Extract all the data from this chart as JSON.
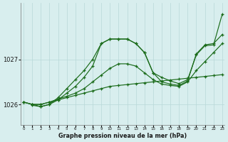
{
  "title": "Graphe pression niveau de la mer (hPa)",
  "background_color": "#d8eeee",
  "grid_color": "#b8d8d8",
  "line_color": "#1a6b1a",
  "xlim": [
    -0.3,
    23.3
  ],
  "ylim": [
    1025.55,
    1028.25
  ],
  "yticks": [
    1026,
    1027
  ],
  "xticks": [
    0,
    1,
    2,
    3,
    4,
    5,
    6,
    7,
    8,
    9,
    10,
    11,
    12,
    13,
    14,
    15,
    16,
    17,
    18,
    19,
    20,
    21,
    22,
    23
  ],
  "series": [
    {
      "x": [
        0,
        1,
        2,
        3,
        4,
        5,
        6,
        7,
        8,
        9,
        10,
        11,
        12,
        13,
        14,
        15,
        16,
        17,
        18,
        19,
        20,
        21,
        22,
        23
      ],
      "y": [
        1026.05,
        1026.0,
        1026.0,
        1026.05,
        1026.1,
        1026.15,
        1026.2,
        1026.25,
        1026.3,
        1026.35,
        1026.4,
        1026.42,
        1026.44,
        1026.46,
        1026.48,
        1026.5,
        1026.52,
        1026.54,
        1026.56,
        1026.58,
        1026.6,
        1026.62,
        1026.64,
        1026.66
      ]
    },
    {
      "x": [
        0,
        1,
        2,
        3,
        4,
        5,
        6,
        7,
        8,
        9,
        10,
        11,
        12,
        13,
        14,
        15,
        16,
        17,
        18,
        19,
        20,
        21,
        22,
        23
      ],
      "y": [
        1026.05,
        1026.0,
        1026.0,
        1026.05,
        1026.12,
        1026.18,
        1026.25,
        1026.35,
        1026.5,
        1026.65,
        1026.8,
        1026.9,
        1026.9,
        1026.85,
        1026.7,
        1026.55,
        1026.45,
        1026.42,
        1026.4,
        1026.5,
        1026.75,
        1026.95,
        1027.15,
        1027.35
      ]
    },
    {
      "x": [
        0,
        1,
        2,
        3,
        4,
        5,
        6,
        7,
        8,
        9,
        10,
        11,
        12,
        13,
        14,
        15,
        16,
        17,
        18,
        19,
        20,
        21,
        22,
        23
      ],
      "y": [
        1026.05,
        1026.0,
        1025.95,
        1026.0,
        1026.1,
        1026.25,
        1026.4,
        1026.6,
        1026.85,
        1027.35,
        1027.45,
        1027.45,
        1027.45,
        1027.35,
        1027.15,
        1026.7,
        1026.6,
        1026.52,
        1026.46,
        1026.55,
        1027.1,
        1027.3,
        1027.32,
        1028.0
      ]
    },
    {
      "x": [
        1,
        2,
        3,
        4,
        5,
        6,
        7,
        8,
        9,
        10,
        11,
        12,
        13,
        14,
        15,
        16,
        17,
        18,
        19,
        20,
        21,
        22,
        23
      ],
      "y": [
        1025.98,
        1025.95,
        1026.0,
        1026.15,
        1026.35,
        1026.55,
        1026.75,
        1027.0,
        1027.35,
        1027.45,
        1027.45,
        1027.45,
        1027.35,
        1027.15,
        1026.7,
        1026.5,
        1026.45,
        1026.42,
        1026.52,
        1027.12,
        1027.32,
        1027.35,
        1027.55
      ]
    }
  ]
}
